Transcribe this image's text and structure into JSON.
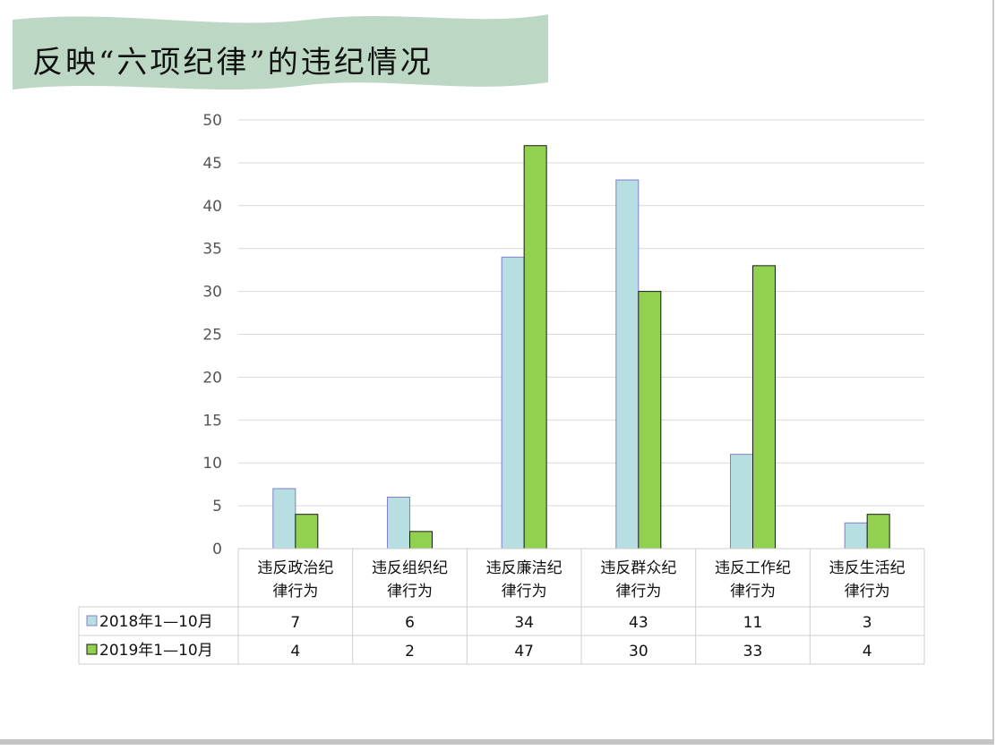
{
  "slide": {
    "title": "反映“六项纪律”的违纪情况"
  },
  "chart_data": {
    "type": "bar",
    "title": "",
    "xlabel": "",
    "ylabel": "",
    "ylim": [
      0,
      50
    ],
    "yticks": [
      0,
      5,
      10,
      15,
      20,
      25,
      30,
      35,
      40,
      45,
      50
    ],
    "grid": true,
    "legend": "data-table",
    "categories": [
      [
        "违反政治纪",
        "律行为"
      ],
      [
        "违反组织纪",
        "律行为"
      ],
      [
        "违反廉洁纪",
        "律行为"
      ],
      [
        "违反群众纪",
        "律行为"
      ],
      [
        "违反工作纪",
        "律行为"
      ],
      [
        "违反生活纪",
        "律行为"
      ]
    ],
    "series": [
      {
        "name": "2018年1—10月",
        "values": [
          7,
          6,
          34,
          43,
          11,
          3
        ],
        "color": "#b7dee0"
      },
      {
        "name": "2019年1—10月",
        "values": [
          4,
          2,
          47,
          30,
          33,
          4
        ],
        "color": "#92d050"
      }
    ]
  },
  "colors": {
    "banner_fill": "#bcd8c4",
    "gridline": "#d9d9d9",
    "series1_border": "#8080d0",
    "series2_border": "#1a1a1a"
  }
}
